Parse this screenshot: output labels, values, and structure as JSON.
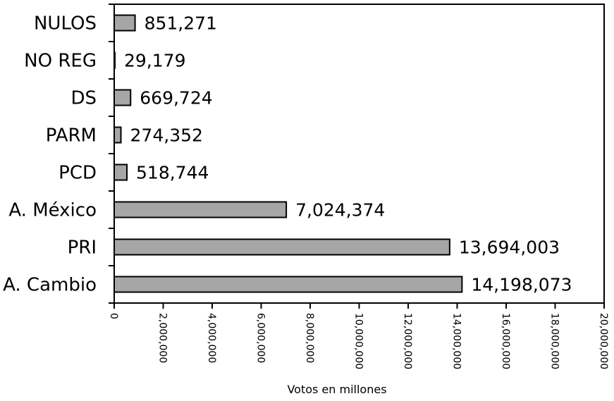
{
  "chart_data": {
    "type": "bar",
    "orientation": "horizontal",
    "categories": [
      "NULOS",
      "NO REG",
      "DS",
      "PARM",
      "PCD",
      "A. México",
      "PRI",
      "A. Cambio"
    ],
    "values": [
      851271,
      29179,
      669724,
      274352,
      518744,
      7024374,
      13694003,
      14198073
    ],
    "value_labels": [
      "851,271",
      "29,179",
      "669,724",
      "274,352",
      "518,744",
      "7,024,374",
      "13,694,003",
      "14,198,073"
    ],
    "x_ticks": [
      "0",
      "2,000,000",
      "4,000,000",
      "6,000,000",
      "8,000,000",
      "10,000,000",
      "12,000,000",
      "14,000,000",
      "16,000,000",
      "18,000,000",
      "20,000,000"
    ],
    "xlim": [
      0,
      20000000
    ],
    "xlabel": "Votos en millones",
    "ylabel": "",
    "title": "",
    "grid": false,
    "bar_color": "#a6a6a6"
  }
}
